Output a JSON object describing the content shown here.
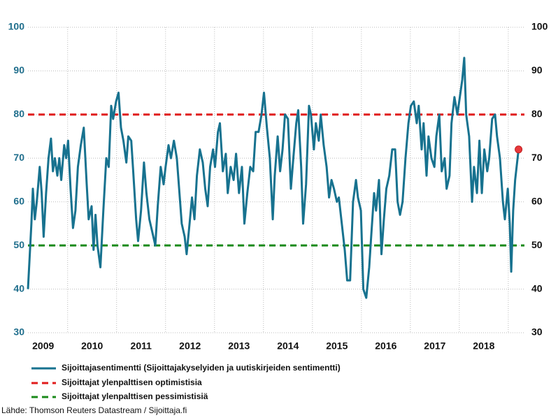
{
  "chart_data": {
    "type": "line",
    "source": "Lähde: Thomson Reuters Datastream / Sijoittaja.fi",
    "series": [
      {
        "name": "Sijoittajasentimentti (Sijoittajakyselyiden ja uutiskirjeiden sentimentti)",
        "color": "#17728f",
        "x": [
          2009.19,
          2009.26,
          2009.29,
          2009.33,
          2009.37,
          2009.43,
          2009.47,
          2009.51,
          2009.56,
          2009.61,
          2009.66,
          2009.7,
          2009.74,
          2009.79,
          2009.83,
          2009.87,
          2009.93,
          2009.97,
          2010.01,
          2010.06,
          2010.11,
          2010.16,
          2010.21,
          2010.27,
          2010.33,
          2010.39,
          2010.43,
          2010.49,
          2010.53,
          2010.57,
          2010.61,
          2010.67,
          2010.73,
          2010.79,
          2010.84,
          2010.89,
          2010.93,
          2010.99,
          2011.04,
          2011.09,
          2011.14,
          2011.2,
          2011.24,
          2011.3,
          2011.34,
          2011.4,
          2011.44,
          2011.5,
          2011.56,
          2011.61,
          2011.67,
          2011.73,
          2011.79,
          2011.84,
          2011.9,
          2011.96,
          2012.0,
          2012.06,
          2012.11,
          2012.17,
          2012.23,
          2012.27,
          2012.33,
          2012.39,
          2012.43,
          2012.49,
          2012.54,
          2012.59,
          2012.64,
          2012.7,
          2012.76,
          2012.81,
          2012.86,
          2012.91,
          2012.97,
          2013.01,
          2013.07,
          2013.11,
          2013.17,
          2013.23,
          2013.27,
          2013.33,
          2013.39,
          2013.44,
          2013.5,
          2013.56,
          2013.61,
          2013.67,
          2013.73,
          2013.79,
          2013.84,
          2013.9,
          2013.96,
          2014.01,
          2014.07,
          2014.13,
          2014.19,
          2014.23,
          2014.29,
          2014.34,
          2014.39,
          2014.44,
          2014.5,
          2014.56,
          2014.61,
          2014.67,
          2014.71,
          2014.77,
          2014.81,
          2014.87,
          2014.93,
          2014.97,
          2015.03,
          2015.07,
          2015.13,
          2015.17,
          2015.23,
          2015.29,
          2015.34,
          2015.39,
          2015.44,
          2015.5,
          2015.54,
          2015.6,
          2015.66,
          2015.71,
          2015.77,
          2015.83,
          2015.89,
          2015.93,
          2015.99,
          2016.04,
          2016.1,
          2016.16,
          2016.2,
          2016.26,
          2016.3,
          2016.36,
          2016.41,
          2016.46,
          2016.51,
          2016.57,
          2016.63,
          2016.69,
          2016.74,
          2016.79,
          2016.84,
          2016.9,
          2016.96,
          2017.01,
          2017.07,
          2017.13,
          2017.17,
          2017.23,
          2017.27,
          2017.33,
          2017.37,
          2017.43,
          2017.49,
          2017.53,
          2017.59,
          2017.64,
          2017.7,
          2017.74,
          2017.8,
          2017.84,
          2017.9,
          2017.96,
          2018.01,
          2018.06,
          2018.1,
          2018.14,
          2018.2,
          2018.26,
          2018.3,
          2018.36,
          2018.41,
          2018.46,
          2018.51,
          2018.57,
          2018.61,
          2018.67,
          2018.73,
          2018.77,
          2018.83,
          2018.89,
          2018.93,
          2018.99,
          2019.03,
          2019.06,
          2019.1,
          2019.14,
          2019.19,
          2019.21
        ],
        "values": [
          40,
          55,
          63,
          56,
          60,
          68,
          62,
          52,
          62,
          70,
          74.5,
          67,
          70,
          66,
          70,
          65,
          73,
          70,
          74,
          63,
          54,
          58,
          68,
          73,
          77,
          64,
          56,
          59,
          49,
          57,
          50,
          45,
          58,
          70,
          68,
          82,
          79,
          83,
          85,
          77,
          74,
          69,
          75,
          74,
          67,
          56,
          51,
          58,
          69,
          62,
          56,
          53,
          50,
          59,
          68,
          64,
          68,
          73,
          70,
          74,
          70,
          64,
          55,
          52,
          48,
          55,
          61,
          56,
          66,
          72,
          69,
          63,
          59,
          68,
          72,
          68,
          76,
          78,
          67,
          71,
          62,
          68,
          65,
          71,
          62,
          68,
          55,
          62,
          68,
          67,
          76,
          76,
          80,
          85,
          77,
          70,
          56,
          66,
          75,
          67,
          72,
          80,
          79,
          63,
          70,
          78,
          81,
          68,
          55,
          64,
          82,
          80,
          72,
          78,
          74,
          80,
          73,
          68,
          61,
          65,
          63,
          60,
          61,
          55,
          49,
          42,
          42,
          60,
          65,
          61,
          58,
          40,
          38,
          45,
          52,
          62,
          58,
          65,
          48,
          56,
          63,
          66,
          72,
          72,
          60,
          57,
          60,
          70,
          78,
          82,
          83,
          78,
          82,
          72,
          78,
          66,
          75,
          70,
          68,
          75,
          80,
          67,
          70,
          63,
          66,
          78,
          84,
          80,
          84,
          88,
          93,
          80,
          75,
          60,
          68,
          62,
          74,
          62,
          72,
          67,
          70,
          79,
          80,
          75,
          70,
          60,
          56,
          63,
          55,
          44,
          58,
          65,
          70,
          72
        ]
      }
    ],
    "reference_lines": [
      {
        "name": "Sijoittajat ylenpalttisen optimistisia",
        "color": "#e01b1b",
        "value": 80
      },
      {
        "name": "Sijoittajat ylenpalttisen pessimistisiä",
        "color": "#1a8a1a",
        "value": 50
      }
    ],
    "marker_color": "#e8383c",
    "xlim": [
      2009.19,
      2019.33
    ],
    "xticks": [
      {
        "value": 2009.5,
        "label": "2009"
      },
      {
        "value": 2010.5,
        "label": "2010"
      },
      {
        "value": 2011.5,
        "label": "2011"
      },
      {
        "value": 2012.5,
        "label": "2012"
      },
      {
        "value": 2013.5,
        "label": "2013"
      },
      {
        "value": 2014.5,
        "label": "2014"
      },
      {
        "value": 2015.5,
        "label": "2015"
      },
      {
        "value": 2016.5,
        "label": "2016"
      },
      {
        "value": 2017.5,
        "label": "2017"
      },
      {
        "value": 2018.5,
        "label": "2018"
      }
    ],
    "xgrid": [
      2010,
      2011,
      2012,
      2013,
      2014,
      2015,
      2016,
      2017,
      2018,
      2019
    ],
    "ylim": [
      30,
      100
    ],
    "yticks": [
      30,
      40,
      50,
      60,
      70,
      80,
      90,
      100
    ],
    "y2lim": [
      30,
      100
    ],
    "y2ticks": [
      30,
      40,
      50,
      60,
      70,
      80,
      90,
      100
    ],
    "grid": true
  }
}
